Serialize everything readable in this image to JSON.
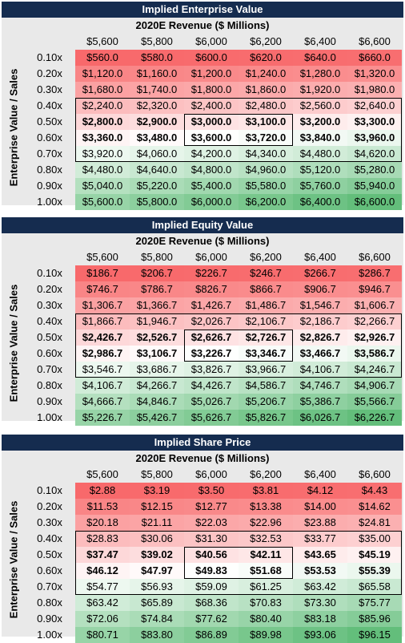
{
  "colors": {
    "banner_bg": "#152c4f",
    "panel_bg": "#e9e9e9",
    "low": "#f8696b",
    "mid": "#ffffff",
    "high": "#63be7b"
  },
  "row_axis_label": "Enterprise Value / Sales",
  "col_axis_label": "2020E Revenue ($ Millions)",
  "columns": [
    "$5,600",
    "$5,800",
    "$6,000",
    "$6,200",
    "$6,400",
    "$6,600"
  ],
  "rows": [
    "0.10x",
    "0.20x",
    "0.30x",
    "0.40x",
    "0.50x",
    "0.60x",
    "0.70x",
    "0.80x",
    "0.90x",
    "1.00x"
  ],
  "tables": [
    {
      "title": "Implied Enterprise Value",
      "cells": [
        [
          "$560.0",
          "$580.0",
          "$600.0",
          "$620.0",
          "$640.0",
          "$660.0"
        ],
        [
          "$1,120.0",
          "$1,160.0",
          "$1,200.0",
          "$1,240.0",
          "$1,280.0",
          "$1,320.0"
        ],
        [
          "$1,680.0",
          "$1,740.0",
          "$1,800.0",
          "$1,860.0",
          "$1,920.0",
          "$1,980.0"
        ],
        [
          "$2,240.0",
          "$2,320.0",
          "$2,400.0",
          "$2,480.0",
          "$2,560.0",
          "$2,640.0"
        ],
        [
          "$2,800.0",
          "$2,900.0",
          "$3,000.0",
          "$3,100.0",
          "$3,200.0",
          "$3,300.0"
        ],
        [
          "$3,360.0",
          "$3,480.0",
          "$3,600.0",
          "$3,720.0",
          "$3,840.0",
          "$3,960.0"
        ],
        [
          "$3,920.0",
          "$4,060.0",
          "$4,200.0",
          "$4,340.0",
          "$4,480.0",
          "$4,620.0"
        ],
        [
          "$4,480.0",
          "$4,640.0",
          "$4,800.0",
          "$4,960.0",
          "$5,120.0",
          "$5,280.0"
        ],
        [
          "$5,040.0",
          "$5,220.0",
          "$5,400.0",
          "$5,580.0",
          "$5,760.0",
          "$5,940.0"
        ],
        [
          "$5,600.0",
          "$5,800.0",
          "$6,000.0",
          "$6,200.0",
          "$6,400.0",
          "$6,600.0"
        ]
      ]
    },
    {
      "title": "Implied Equity Value",
      "cells": [
        [
          "$186.7",
          "$206.7",
          "$226.7",
          "$246.7",
          "$266.7",
          "$286.7"
        ],
        [
          "$746.7",
          "$786.7",
          "$826.7",
          "$866.7",
          "$906.7",
          "$946.7"
        ],
        [
          "$1,306.7",
          "$1,366.7",
          "$1,426.7",
          "$1,486.7",
          "$1,546.7",
          "$1,606.7"
        ],
        [
          "$1,866.7",
          "$1,946.7",
          "$2,026.7",
          "$2,106.7",
          "$2,186.7",
          "$2,266.7"
        ],
        [
          "$2,426.7",
          "$2,526.7",
          "$2,626.7",
          "$2,726.7",
          "$2,826.7",
          "$2,926.7"
        ],
        [
          "$2,986.7",
          "$3,106.7",
          "$3,226.7",
          "$3,346.7",
          "$3,466.7",
          "$3,586.7"
        ],
        [
          "$3,546.7",
          "$3,686.7",
          "$3,826.7",
          "$3,966.7",
          "$4,106.7",
          "$4,246.7"
        ],
        [
          "$4,106.7",
          "$4,266.7",
          "$4,426.7",
          "$4,586.7",
          "$4,746.7",
          "$4,906.7"
        ],
        [
          "$4,666.7",
          "$4,846.7",
          "$5,026.7",
          "$5,206.7",
          "$5,386.7",
          "$5,566.7"
        ],
        [
          "$5,226.7",
          "$5,426.7",
          "$5,626.7",
          "$5,826.7",
          "$6,026.7",
          "$6,226.7"
        ]
      ]
    },
    {
      "title": "Implied Share Price",
      "cells": [
        [
          "$2.88",
          "$3.19",
          "$3.50",
          "$3.81",
          "$4.12",
          "$4.43"
        ],
        [
          "$11.53",
          "$12.15",
          "$12.77",
          "$13.38",
          "$14.00",
          "$14.62"
        ],
        [
          "$20.18",
          "$21.11",
          "$22.03",
          "$22.96",
          "$23.88",
          "$24.81"
        ],
        [
          "$28.83",
          "$30.06",
          "$31.30",
          "$32.53",
          "$33.77",
          "$35.00"
        ],
        [
          "$37.47",
          "$39.02",
          "$40.56",
          "$42.11",
          "$43.65",
          "$45.19"
        ],
        [
          "$46.12",
          "$47.97",
          "$49.83",
          "$51.68",
          "$53.53",
          "$55.39"
        ],
        [
          "$54.77",
          "$56.93",
          "$59.09",
          "$61.25",
          "$63.42",
          "$65.58"
        ],
        [
          "$63.42",
          "$65.89",
          "$68.36",
          "$70.83",
          "$73.30",
          "$75.77"
        ],
        [
          "$72.06",
          "$74.84",
          "$77.62",
          "$80.40",
          "$83.18",
          "$85.96"
        ],
        [
          "$80.71",
          "$83.80",
          "$86.89",
          "$89.98",
          "$93.06",
          "$96.15"
        ]
      ]
    }
  ]
}
